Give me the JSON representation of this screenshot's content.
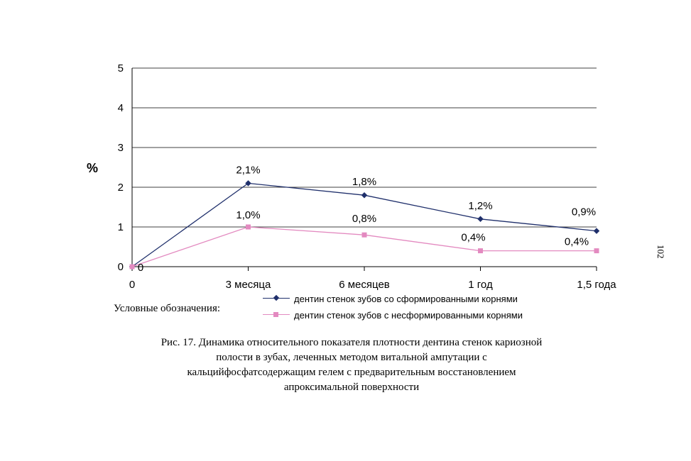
{
  "chart_data": {
    "type": "line",
    "categories": [
      "0",
      "3 месяца",
      "6 месяцев",
      "1 год",
      "1,5 года"
    ],
    "ylabel": "%",
    "ylim": [
      0,
      5
    ],
    "yticks": [
      "0",
      "1",
      "2",
      "3",
      "4",
      "5"
    ],
    "grid": true,
    "legend_position": "bottom",
    "series": [
      {
        "name": "дентин стенок зубов со сформированными корнями",
        "values": [
          0,
          2.1,
          1.8,
          1.2,
          0.9
        ],
        "labels": [
          "0",
          "2,1%",
          "1,8%",
          "1,2%",
          "0,9%"
        ],
        "color": "#1f2f6b",
        "marker": "diamond"
      },
      {
        "name": "дентин стенок зубов с несформированными корнями",
        "values": [
          0,
          1.0,
          0.8,
          0.4,
          0.4
        ],
        "labels": [
          "",
          "1,0%",
          "0,8%",
          "0,4%",
          "0,4%"
        ],
        "color": "#e38ac0",
        "marker": "square"
      }
    ]
  },
  "legend": {
    "title": "Условные обозначения:"
  },
  "caption": {
    "lines": [
      "Рис. 17.  Динамика относительного показателя плотности дентина стенок кариозной",
      "полости в зубах, леченных методом витальной ампутации с",
      "кальцийфосфатсодержащим гелем с предварительным восстановлением",
      "апроксимальной поверхности"
    ]
  },
  "page": {
    "number": "102"
  },
  "colors": {
    "grid": "#000000",
    "background": "#ffffff"
  }
}
